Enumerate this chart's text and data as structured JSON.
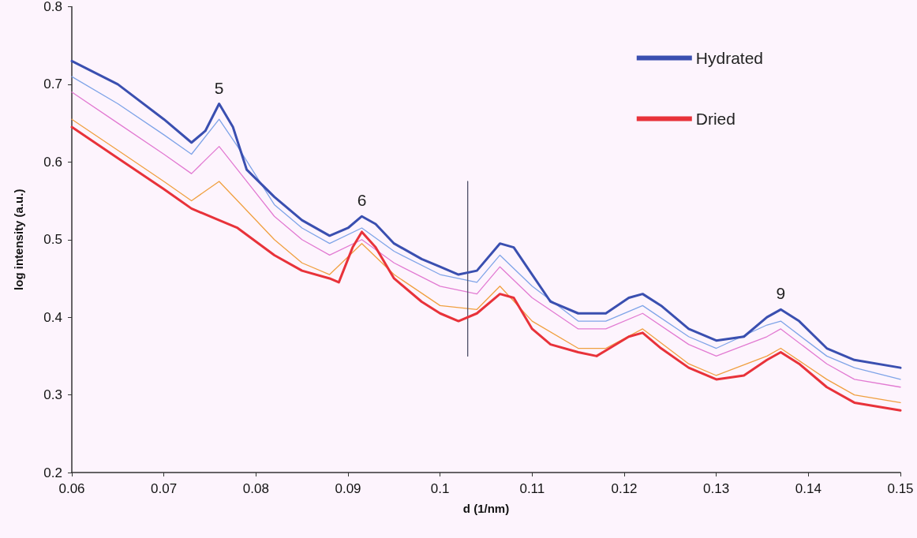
{
  "chart_data": {
    "type": "line",
    "xlabel": "d (1/nm)",
    "ylabel": "log intensity (a.u.)",
    "xlim": [
      0.06,
      0.15
    ],
    "xticks": [
      0.06,
      0.07,
      0.08,
      0.09,
      0.1,
      0.11,
      0.12,
      0.13,
      0.14,
      0.15
    ],
    "ylim": [
      0.2,
      0.8
    ],
    "yticks": [
      0.2,
      0.3,
      0.4,
      0.5,
      0.6,
      0.7,
      0.8
    ],
    "grid": false,
    "legend": "top right",
    "marker": "none",
    "line_style": "solid",
    "annotations": [
      {
        "text": "5",
        "x": 0.076,
        "y": 0.675
      },
      {
        "text": "6",
        "x": 0.0915,
        "y": 0.53
      },
      {
        "text": "9",
        "x": 0.137,
        "y": 0.41
      }
    ],
    "series": [
      {
        "color": "#e27ad2",
        "x": [
          0.06,
          0.065,
          0.07,
          0.073,
          0.076,
          0.078,
          0.082,
          0.085,
          0.088,
          0.0915,
          0.095,
          0.1,
          0.104,
          0.1065,
          0.11,
          0.115,
          0.118,
          0.122,
          0.127,
          0.13,
          0.1355,
          0.137,
          0.142,
          0.145,
          0.15
        ],
        "values": [
          0.69,
          0.65,
          0.61,
          0.585,
          0.62,
          0.59,
          0.53,
          0.5,
          0.48,
          0.5,
          0.47,
          0.44,
          0.43,
          0.465,
          0.425,
          0.385,
          0.385,
          0.405,
          0.365,
          0.35,
          0.375,
          0.385,
          0.34,
          0.32,
          0.31
        ]
      },
      {
        "color": "#f0a040",
        "x": [
          0.06,
          0.065,
          0.07,
          0.073,
          0.076,
          0.078,
          0.082,
          0.085,
          0.088,
          0.0915,
          0.095,
          0.1,
          0.104,
          0.1065,
          0.11,
          0.115,
          0.118,
          0.122,
          0.127,
          0.13,
          0.1355,
          0.137,
          0.142,
          0.145,
          0.15
        ],
        "values": [
          0.655,
          0.615,
          0.575,
          0.55,
          0.575,
          0.55,
          0.5,
          0.47,
          0.455,
          0.495,
          0.455,
          0.415,
          0.41,
          0.44,
          0.395,
          0.36,
          0.36,
          0.385,
          0.34,
          0.325,
          0.35,
          0.36,
          0.32,
          0.3,
          0.29
        ]
      },
      {
        "color": "#7fa4e8",
        "x": [
          0.06,
          0.065,
          0.07,
          0.073,
          0.076,
          0.078,
          0.082,
          0.085,
          0.088,
          0.0915,
          0.095,
          0.1,
          0.104,
          0.1065,
          0.11,
          0.115,
          0.118,
          0.122,
          0.127,
          0.13,
          0.1355,
          0.137,
          0.142,
          0.145,
          0.15
        ],
        "values": [
          0.71,
          0.675,
          0.635,
          0.61,
          0.655,
          0.62,
          0.545,
          0.515,
          0.495,
          0.515,
          0.485,
          0.455,
          0.445,
          0.48,
          0.44,
          0.395,
          0.395,
          0.415,
          0.375,
          0.36,
          0.39,
          0.395,
          0.35,
          0.335,
          0.32
        ]
      },
      {
        "name": "Hydrated",
        "color": "#3a4fb0",
        "x": [
          0.06,
          0.065,
          0.07,
          0.073,
          0.0745,
          0.076,
          0.0775,
          0.079,
          0.082,
          0.085,
          0.088,
          0.09,
          0.0915,
          0.093,
          0.095,
          0.098,
          0.1,
          0.102,
          0.104,
          0.1065,
          0.108,
          0.11,
          0.112,
          0.115,
          0.118,
          0.1205,
          0.122,
          0.124,
          0.127,
          0.13,
          0.133,
          0.1355,
          0.137,
          0.139,
          0.142,
          0.145,
          0.15
        ],
        "values": [
          0.73,
          0.7,
          0.655,
          0.625,
          0.64,
          0.675,
          0.645,
          0.59,
          0.555,
          0.525,
          0.505,
          0.515,
          0.53,
          0.52,
          0.495,
          0.475,
          0.465,
          0.455,
          0.46,
          0.495,
          0.49,
          0.455,
          0.42,
          0.405,
          0.405,
          0.425,
          0.43,
          0.415,
          0.385,
          0.37,
          0.375,
          0.4,
          0.41,
          0.395,
          0.36,
          0.345,
          0.335
        ]
      },
      {
        "name": "Dried",
        "color": "#e8323a",
        "x": [
          0.06,
          0.065,
          0.07,
          0.073,
          0.076,
          0.078,
          0.082,
          0.085,
          0.088,
          0.089,
          0.0905,
          0.0915,
          0.093,
          0.095,
          0.098,
          0.1,
          0.102,
          0.104,
          0.1065,
          0.108,
          0.11,
          0.112,
          0.115,
          0.117,
          0.1205,
          0.122,
          0.124,
          0.127,
          0.13,
          0.133,
          0.1355,
          0.137,
          0.139,
          0.142,
          0.145,
          0.15
        ],
        "values": [
          0.645,
          0.605,
          0.565,
          0.54,
          0.525,
          0.515,
          0.48,
          0.46,
          0.45,
          0.445,
          0.49,
          0.51,
          0.49,
          0.45,
          0.42,
          0.405,
          0.395,
          0.405,
          0.43,
          0.425,
          0.385,
          0.365,
          0.355,
          0.35,
          0.375,
          0.38,
          0.36,
          0.335,
          0.32,
          0.325,
          0.345,
          0.355,
          0.34,
          0.31,
          0.29,
          0.28
        ]
      },
      {
        "color": "#50506a",
        "x": [
          0.103,
          0.103
        ],
        "values": [
          0.35,
          0.575
        ]
      }
    ]
  }
}
